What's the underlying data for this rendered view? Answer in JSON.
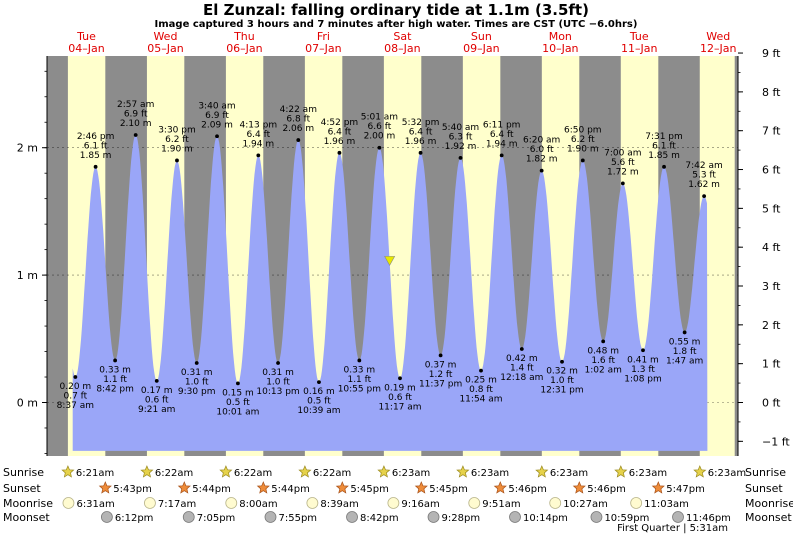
{
  "title": "El Zunzal: falling  ordinary tide at 1.1m (3.5ft)",
  "subtitle": "Image captured 3 hours and 7 minutes after high water. Times are CST (UTC −6.0hrs)",
  "colors": {
    "night": "#8c8c8c",
    "day": "#ffffcc",
    "water": "#9aa6f8",
    "day_label": "#e00000",
    "current_marker": "#e8e800"
  },
  "chart_data": {
    "type": "area",
    "days": [
      {
        "name": "Tue",
        "date": "04–Jan"
      },
      {
        "name": "Wed",
        "date": "05–Jan"
      },
      {
        "name": "Thu",
        "date": "06–Jan"
      },
      {
        "name": "Fri",
        "date": "07–Jan"
      },
      {
        "name": "Sat",
        "date": "08–Jan"
      },
      {
        "name": "Sun",
        "date": "09–Jan"
      },
      {
        "name": "Mon",
        "date": "10–Jan"
      },
      {
        "name": "Tue",
        "date": "11–Jan"
      },
      {
        "name": "Wed",
        "date": "12–Jan"
      }
    ],
    "x_range_hours": [
      0,
      210
    ],
    "y_left": {
      "ticks": [
        "0 m",
        "1 m",
        "2 m"
      ],
      "values": [
        0,
        1,
        2
      ],
      "range_m": [
        -0.42,
        2.72
      ]
    },
    "y_right": {
      "ticks": [
        "−1 ft",
        "0 ft",
        "1 ft",
        "2 ft",
        "3 ft",
        "4 ft",
        "5 ft",
        "6 ft",
        "7 ft",
        "8 ft",
        "9 ft"
      ],
      "values": [
        -1,
        0,
        1,
        2,
        3,
        4,
        5,
        6,
        7,
        8,
        9
      ]
    },
    "tides": [
      {
        "t": 8.62,
        "h": 0.2,
        "type": "low",
        "m": "0.20 m",
        "ft": "0.7 ft",
        "time": "8:37 am"
      },
      {
        "t": 14.77,
        "h": 1.85,
        "type": "high",
        "m": "1.85 m",
        "ft": "6.1 ft",
        "time": "2:46 pm"
      },
      {
        "t": 20.7,
        "h": 0.33,
        "type": "low",
        "m": "0.33 m",
        "ft": "1.1 ft",
        "time": "8:42 pm"
      },
      {
        "t": 26.95,
        "h": 2.1,
        "type": "high",
        "m": "2.10 m",
        "ft": "6.9 ft",
        "time": "2:57 am"
      },
      {
        "t": 33.35,
        "h": 0.17,
        "type": "low",
        "m": "0.17 m",
        "ft": "0.6 ft",
        "time": "9:21 am"
      },
      {
        "t": 39.5,
        "h": 1.9,
        "type": "high",
        "m": "1.90 m",
        "ft": "6.2 ft",
        "time": "3:30 pm"
      },
      {
        "t": 45.5,
        "h": 0.31,
        "type": "low",
        "m": "0.31 m",
        "ft": "1.0 ft",
        "time": "9:30 pm"
      },
      {
        "t": 51.67,
        "h": 2.09,
        "type": "high",
        "m": "2.09 m",
        "ft": "6.9 ft",
        "time": "3:40 am"
      },
      {
        "t": 58.02,
        "h": 0.15,
        "type": "low",
        "m": "0.15 m",
        "ft": "0.5 ft",
        "time": "10:01 am"
      },
      {
        "t": 64.22,
        "h": 1.94,
        "type": "high",
        "m": "1.94 m",
        "ft": "6.4 ft",
        "time": "4:13 pm"
      },
      {
        "t": 70.22,
        "h": 0.31,
        "type": "low",
        "m": "0.31 m",
        "ft": "1.0 ft",
        "time": "10:13 pm"
      },
      {
        "t": 76.37,
        "h": 2.06,
        "type": "high",
        "m": "2.06 m",
        "ft": "6.8 ft",
        "time": "4:22 am"
      },
      {
        "t": 82.65,
        "h": 0.16,
        "type": "low",
        "m": "0.16 m",
        "ft": "0.5 ft",
        "time": "10:39 am"
      },
      {
        "t": 88.87,
        "h": 1.96,
        "type": "high",
        "m": "1.96 m",
        "ft": "6.4 ft",
        "time": "4:52 pm"
      },
      {
        "t": 94.92,
        "h": 0.33,
        "type": "low",
        "m": "0.33 m",
        "ft": "1.1 ft",
        "time": "10:55 pm"
      },
      {
        "t": 101.02,
        "h": 2.0,
        "type": "high",
        "m": "2.00 m",
        "ft": "6.6 ft",
        "time": "5:01 am"
      },
      {
        "t": 107.28,
        "h": 0.19,
        "type": "low",
        "m": "0.19 m",
        "ft": "0.6 ft",
        "time": "11:17 am"
      },
      {
        "t": 113.53,
        "h": 1.96,
        "type": "high",
        "m": "1.96 m",
        "ft": "6.4 ft",
        "time": "5:32 pm"
      },
      {
        "t": 119.62,
        "h": 0.37,
        "type": "low",
        "m": "0.37 m",
        "ft": "1.2 ft",
        "time": "11:37 pm"
      },
      {
        "t": 125.67,
        "h": 1.92,
        "type": "high",
        "m": "1.92 m",
        "ft": "6.3 ft",
        "time": "5:40 am"
      },
      {
        "t": 131.9,
        "h": 0.25,
        "type": "low",
        "m": "0.25 m",
        "ft": "0.8 ft",
        "time": "11:54 am"
      },
      {
        "t": 138.18,
        "h": 1.94,
        "type": "high",
        "m": "1.94 m",
        "ft": "6.4 ft",
        "time": "6:11 pm"
      },
      {
        "t": 144.3,
        "h": 0.42,
        "type": "low",
        "m": "0.42 m",
        "ft": "1.4 ft",
        "time": "12:18 am"
      },
      {
        "t": 150.33,
        "h": 1.82,
        "type": "high",
        "m": "1.82 m",
        "ft": "6.0 ft",
        "time": "6:20 am"
      },
      {
        "t": 156.52,
        "h": 0.32,
        "type": "low",
        "m": "0.32 m",
        "ft": "1.0 ft",
        "time": "12:31 pm"
      },
      {
        "t": 162.83,
        "h": 1.9,
        "type": "high",
        "m": "1.90 m",
        "ft": "6.2 ft",
        "time": "6:50 pm"
      },
      {
        "t": 169.03,
        "h": 0.48,
        "type": "low",
        "m": "0.48 m",
        "ft": "1.6 ft",
        "time": "1:02 am"
      },
      {
        "t": 175.0,
        "h": 1.72,
        "type": "high",
        "m": "1.72 m",
        "ft": "5.6 ft",
        "time": "7:00 am"
      },
      {
        "t": 181.13,
        "h": 0.41,
        "type": "low",
        "m": "0.41 m",
        "ft": "1.3 ft",
        "time": "1:08 pm"
      },
      {
        "t": 187.52,
        "h": 1.85,
        "type": "high",
        "m": "1.85 m",
        "ft": "6.1 ft",
        "time": "7:31 pm"
      },
      {
        "t": 193.78,
        "h": 0.55,
        "type": "low",
        "m": "0.55 m",
        "ft": "1.8 ft",
        "time": "1:47 am"
      },
      {
        "t": 199.7,
        "h": 1.62,
        "type": "high",
        "m": "1.62 m",
        "ft": "5.3 ft",
        "time": "7:42 am"
      }
    ],
    "current": {
      "t": 104.13,
      "h": 1.1
    },
    "daylight": [
      {
        "sunrise": 6.35,
        "sunset": 17.72
      },
      {
        "sunrise": 30.37,
        "sunset": 41.73
      },
      {
        "sunrise": 54.37,
        "sunset": 65.73
      },
      {
        "sunrise": 78.37,
        "sunset": 89.75
      },
      {
        "sunrise": 102.38,
        "sunset": 113.75
      },
      {
        "sunrise": 126.38,
        "sunset": 137.77
      },
      {
        "sunrise": 150.38,
        "sunset": 161.77
      },
      {
        "sunrise": 174.38,
        "sunset": 185.78
      },
      {
        "sunrise": 198.38,
        "sunset": 209.0
      }
    ],
    "data_end_hours": 200.7
  },
  "astro": {
    "labels": {
      "sunrise": "Sunrise",
      "sunset": "Sunset",
      "moonrise": "Moonrise",
      "moonset": "Moonset"
    },
    "sunrise": [
      {
        "t": 6.35,
        "label": "6:21am"
      },
      {
        "t": 30.37,
        "label": "6:22am"
      },
      {
        "t": 54.37,
        "label": "6:22am"
      },
      {
        "t": 78.37,
        "label": "6:22am"
      },
      {
        "t": 102.38,
        "label": "6:23am"
      },
      {
        "t": 126.38,
        "label": "6:23am"
      },
      {
        "t": 150.38,
        "label": "6:23am"
      },
      {
        "t": 174.38,
        "label": "6:23am"
      },
      {
        "t": 198.38,
        "label": "6:23am"
      }
    ],
    "sunset": [
      {
        "t": 17.72,
        "label": "5:43pm"
      },
      {
        "t": 41.73,
        "label": "5:44pm"
      },
      {
        "t": 65.73,
        "label": "5:44pm"
      },
      {
        "t": 89.75,
        "label": "5:45pm"
      },
      {
        "t": 113.75,
        "label": "5:45pm"
      },
      {
        "t": 137.77,
        "label": "5:46pm"
      },
      {
        "t": 161.77,
        "label": "5:46pm"
      },
      {
        "t": 185.78,
        "label": "5:47pm"
      }
    ],
    "moonrise": [
      {
        "t": 6.52,
        "label": "6:31am"
      },
      {
        "t": 31.28,
        "label": "7:17am"
      },
      {
        "t": 56.0,
        "label": "8:00am"
      },
      {
        "t": 80.65,
        "label": "8:39am"
      },
      {
        "t": 105.27,
        "label": "9:16am"
      },
      {
        "t": 129.85,
        "label": "9:51am"
      },
      {
        "t": 154.45,
        "label": "10:27am"
      },
      {
        "t": 179.05,
        "label": "11:03am"
      }
    ],
    "moonset": [
      {
        "t": 18.2,
        "label": "6:12pm"
      },
      {
        "t": 43.08,
        "label": "7:05pm"
      },
      {
        "t": 67.92,
        "label": "7:55pm"
      },
      {
        "t": 92.7,
        "label": "8:42pm"
      },
      {
        "t": 117.47,
        "label": "9:28pm"
      },
      {
        "t": 142.23,
        "label": "10:14pm"
      },
      {
        "t": 166.98,
        "label": "10:59pm"
      },
      {
        "t": 191.77,
        "label": "11:46pm"
      }
    ],
    "moon_phase": "First Quarter | 5:31am"
  }
}
